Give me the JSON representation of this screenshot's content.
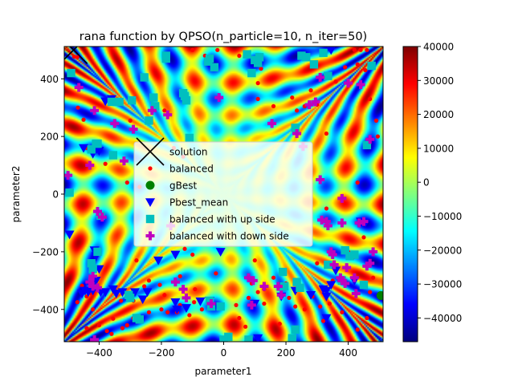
{
  "chart_data": {
    "type": "scatter",
    "title": "rana function by QPSO(n_particle=10, n_iter=50)",
    "xlabel": "parameter1",
    "ylabel": "parameter2",
    "xlim": [
      -512,
      512
    ],
    "ylim": [
      -512,
      512
    ],
    "xticks": [
      -400,
      -200,
      0,
      200,
      400
    ],
    "xtick_labels": [
      "−400",
      "−200",
      "0",
      "200",
      "400"
    ],
    "yticks": [
      -400,
      -200,
      0,
      200,
      400
    ],
    "ytick_labels": [
      "−400",
      "−200",
      "0",
      "200",
      "400"
    ],
    "grid": false,
    "legend_position": "center",
    "background": "heatmap of the rana function values",
    "colorbar": {
      "colormap": "jet",
      "range": [
        -47000,
        40000
      ],
      "ticks": [
        -40000,
        -30000,
        -20000,
        -10000,
        0,
        10000,
        20000,
        30000,
        40000
      ],
      "tick_labels": [
        "−40000",
        "−30000",
        "−20000",
        "−10000",
        "0",
        "10000",
        "20000",
        "30000",
        "40000"
      ]
    },
    "series": [
      {
        "name": "solution",
        "marker": "x",
        "color": "#000000",
        "points": [
          [
            -482,
            500
          ]
        ]
      },
      {
        "name": "balanced",
        "marker": "dot",
        "color": "#ff0000",
        "points": [
          [
            -480,
            477
          ],
          [
            -470,
            475
          ],
          [
            -468,
            300
          ],
          [
            -450,
            258
          ],
          [
            -415,
            168
          ],
          [
            -440,
            160
          ],
          [
            -455,
            -318
          ],
          [
            -470,
            -375
          ],
          [
            -440,
            -355
          ],
          [
            -425,
            -345
          ],
          [
            -420,
            -400
          ],
          [
            -440,
            -465
          ],
          [
            -400,
            -455
          ],
          [
            -375,
            -475
          ],
          [
            -355,
            -432
          ],
          [
            -360,
            -485
          ],
          [
            -325,
            -465
          ],
          [
            -310,
            -455
          ],
          [
            -330,
            -370
          ],
          [
            -290,
            -370
          ],
          [
            -280,
            -230
          ],
          [
            -255,
            -320
          ],
          [
            -240,
            -300
          ],
          [
            -205,
            -315
          ],
          [
            -190,
            -350
          ],
          [
            -200,
            -400
          ],
          [
            -180,
            -410
          ],
          [
            -150,
            -410
          ],
          [
            -140,
            -385
          ],
          [
            -110,
            -420
          ],
          [
            -95,
            -375
          ],
          [
            -70,
            -400
          ],
          [
            -45,
            -385
          ],
          [
            -25,
            -275
          ],
          [
            -100,
            -210
          ],
          [
            -125,
            -190
          ],
          [
            -140,
            -285
          ],
          [
            -92,
            -330
          ],
          [
            -240,
            -410
          ],
          [
            -290,
            -430
          ],
          [
            -380,
            105
          ],
          [
            -350,
            140
          ],
          [
            -300,
            255
          ],
          [
            -310,
            40
          ],
          [
            -270,
            25
          ],
          [
            -190,
            290
          ],
          [
            -160,
            160
          ],
          [
            -130,
            130
          ],
          [
            -100,
            500
          ],
          [
            -60,
            480
          ],
          [
            -20,
            500
          ],
          [
            50,
            480
          ],
          [
            70,
            490
          ],
          [
            110,
            385
          ],
          [
            120,
            435
          ],
          [
            110,
            330
          ],
          [
            160,
            305
          ],
          [
            220,
            335
          ],
          [
            235,
            290
          ],
          [
            260,
            305
          ],
          [
            280,
            360
          ],
          [
            300,
            310
          ],
          [
            330,
            210
          ],
          [
            360,
            390
          ],
          [
            390,
            440
          ],
          [
            420,
            500
          ],
          [
            440,
            500
          ],
          [
            430,
            450
          ],
          [
            455,
            430
          ],
          [
            460,
            500
          ],
          [
            470,
            330
          ],
          [
            490,
            255
          ],
          [
            495,
            200
          ],
          [
            430,
            40
          ],
          [
            450,
            -150
          ],
          [
            470,
            -245
          ],
          [
            480,
            -290
          ],
          [
            470,
            -340
          ],
          [
            460,
            -430
          ],
          [
            430,
            -470
          ],
          [
            380,
            -410
          ],
          [
            340,
            -380
          ],
          [
            310,
            -390
          ],
          [
            320,
            -440
          ],
          [
            285,
            -355
          ],
          [
            260,
            -400
          ],
          [
            230,
            -390
          ],
          [
            210,
            -360
          ],
          [
            180,
            -450
          ],
          [
            130,
            -380
          ],
          [
            110,
            -340
          ],
          [
            90,
            -310
          ],
          [
            70,
            -460
          ],
          [
            50,
            -430
          ],
          [
            40,
            -385
          ],
          [
            80,
            -360
          ],
          [
            100,
            -230
          ],
          [
            130,
            -330
          ],
          [
            160,
            -290
          ],
          [
            200,
            -310
          ],
          [
            230,
            -300
          ],
          [
            250,
            -330
          ],
          [
            300,
            -240
          ],
          [
            350,
            -300
          ],
          [
            330,
            -50
          ],
          [
            380,
            -100
          ],
          [
            400,
            -200
          ],
          [
            415,
            -220
          ]
        ]
      },
      {
        "name": "gBest",
        "marker": "circle",
        "color": "#008000",
        "points": [
          [
            505,
            -352
          ]
        ]
      },
      {
        "name": "Pbest_mean",
        "marker": "triangle-down",
        "color": "#0000ff",
        "points": [
          [
            -495,
            -140
          ],
          [
            -450,
            160
          ],
          [
            -420,
            140
          ],
          [
            -400,
            150
          ],
          [
            -380,
            322
          ],
          [
            -360,
            330
          ],
          [
            -415,
            -195
          ],
          [
            -410,
            -215
          ],
          [
            -400,
            -260
          ],
          [
            -410,
            -300
          ],
          [
            -425,
            -320
          ],
          [
            -445,
            -335
          ],
          [
            -455,
            -345
          ],
          [
            -435,
            -340
          ],
          [
            -420,
            -335
          ],
          [
            -395,
            -340
          ],
          [
            -380,
            -340
          ],
          [
            -355,
            -330
          ],
          [
            -345,
            -345
          ],
          [
            -325,
            -340
          ],
          [
            -305,
            -350
          ],
          [
            -285,
            -340
          ],
          [
            -260,
            -365
          ],
          [
            -245,
            -340
          ],
          [
            -210,
            -230
          ],
          [
            -155,
            -210
          ],
          [
            -155,
            -375
          ],
          [
            -150,
            -400
          ],
          [
            -120,
            -395
          ],
          [
            -75,
            -372
          ],
          [
            -45,
            -370
          ],
          [
            -10,
            -200
          ],
          [
            100,
            -380
          ],
          [
            110,
            -500
          ],
          [
            185,
            -355
          ],
          [
            230,
            -335
          ],
          [
            280,
            -350
          ],
          [
            320,
            -330
          ],
          [
            330,
            -355
          ],
          [
            345,
            -315
          ],
          [
            360,
            -265
          ],
          [
            330,
            -430
          ],
          [
            330,
            -335
          ],
          [
            420,
            -300
          ],
          [
            440,
            -95
          ],
          [
            455,
            -100
          ],
          [
            345,
            500
          ]
        ]
      },
      {
        "name": "balanced with up side",
        "marker": "square",
        "color": "#00bfbf",
        "points": [
          [
            -490,
            420
          ],
          [
            -495,
            5
          ],
          [
            -425,
            155
          ],
          [
            -410,
            175
          ],
          [
            -405,
            175
          ],
          [
            -395,
            -75
          ],
          [
            -405,
            -200
          ],
          [
            -425,
            -240
          ],
          [
            -420,
            -260
          ],
          [
            -355,
            135
          ],
          [
            -360,
            320
          ],
          [
            -335,
            320
          ],
          [
            -295,
            325
          ],
          [
            -255,
            405
          ],
          [
            -240,
            255
          ],
          [
            -225,
            335
          ],
          [
            -220,
            305
          ],
          [
            -185,
            470
          ],
          [
            -185,
            480
          ],
          [
            -130,
            350
          ],
          [
            -125,
            340
          ],
          [
            -120,
            325
          ],
          [
            -110,
            195
          ],
          [
            -50,
            460
          ],
          [
            -45,
            470
          ],
          [
            -30,
            440
          ],
          [
            -45,
            -370
          ],
          [
            -40,
            -390
          ],
          [
            15,
            -495
          ],
          [
            0,
            -505
          ],
          [
            -10,
            -390
          ],
          [
            75,
            485
          ],
          [
            90,
            420
          ],
          [
            110,
            455
          ],
          [
            100,
            465
          ],
          [
            115,
            475
          ],
          [
            80,
            -505
          ],
          [
            190,
            -270
          ],
          [
            235,
            -305
          ],
          [
            230,
            230
          ],
          [
            250,
            480
          ],
          [
            265,
            475
          ],
          [
            290,
            450
          ],
          [
            320,
            490
          ],
          [
            335,
            410
          ],
          [
            475,
            445
          ],
          [
            460,
            170
          ],
          [
            450,
            -315
          ],
          [
            420,
            -210
          ],
          [
            405,
            -215
          ],
          [
            390,
            -195
          ],
          [
            380,
            -300
          ],
          [
            335,
            -245
          ],
          [
            245,
            -325
          ],
          [
            195,
            -320
          ],
          [
            230,
            -470
          ],
          [
            220,
            -500
          ],
          [
            -280,
            -430
          ],
          [
            -270,
            -435
          ],
          [
            -300,
            -360
          ],
          [
            -305,
            -350
          ]
        ]
      },
      {
        "name": "balanced with down side",
        "marker": "plus",
        "color": "#bf00bf",
        "points": [
          [
            -500,
            65
          ],
          [
            -465,
            370
          ],
          [
            -415,
            290
          ],
          [
            -430,
            100
          ],
          [
            -405,
            -60
          ],
          [
            -390,
            -80
          ],
          [
            -420,
            -285
          ],
          [
            -430,
            -305
          ],
          [
            -420,
            -320
          ],
          [
            -405,
            -325
          ],
          [
            -415,
            -505
          ],
          [
            -350,
            245
          ],
          [
            -320,
            115
          ],
          [
            -290,
            225
          ],
          [
            -230,
            290
          ],
          [
            -180,
            275
          ],
          [
            -170,
            -110
          ],
          [
            -155,
            -305
          ],
          [
            -130,
            -330
          ],
          [
            -120,
            -360
          ],
          [
            -40,
            -380
          ],
          [
            -15,
            335
          ],
          [
            80,
            -290
          ],
          [
            95,
            -300
          ],
          [
            90,
            -385
          ],
          [
            130,
            -320
          ],
          [
            175,
            -320
          ],
          [
            185,
            -350
          ],
          [
            155,
            245
          ],
          [
            235,
            210
          ],
          [
            255,
            165
          ],
          [
            275,
            310
          ],
          [
            295,
            320
          ],
          [
            310,
            405
          ],
          [
            310,
            50
          ],
          [
            315,
            -90
          ],
          [
            330,
            -95
          ],
          [
            335,
            -110
          ],
          [
            345,
            -200
          ],
          [
            350,
            -210
          ],
          [
            355,
            -245
          ],
          [
            375,
            -290
          ],
          [
            380,
            -300
          ],
          [
            390,
            -310
          ],
          [
            395,
            -255
          ],
          [
            380,
            -100
          ],
          [
            420,
            -290
          ],
          [
            425,
            -345
          ],
          [
            435,
            -100
          ],
          [
            450,
            -95
          ],
          [
            460,
            -250
          ],
          [
            470,
            -240
          ],
          [
            480,
            -200
          ],
          [
            470,
            190
          ],
          [
            440,
            380
          ],
          [
            400,
            385
          ],
          [
            380,
            -15
          ]
        ]
      }
    ]
  }
}
